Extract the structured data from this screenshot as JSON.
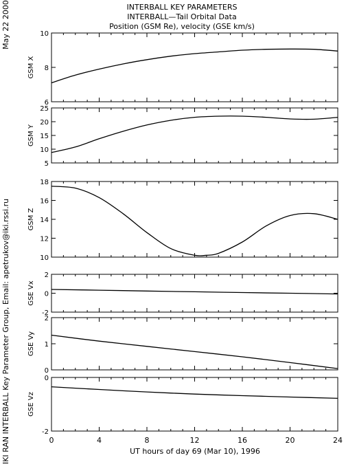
{
  "header": {
    "date": "May 22 2000",
    "title": "INTERBALL KEY PARAMETERS",
    "subtitle": "INTERBALL—Tail Orbital Data",
    "units": "Position (GSM Re), velocity (GSE km/s)"
  },
  "credit": "IKI RAN INTERBALL Key Parameter Group, Email: apetrukov@iki.rssi.ru",
  "chart_data": {
    "type": "line",
    "x_label": "UT hours of day  69 (Mar 10), 1996",
    "x_range": [
      0,
      24
    ],
    "x_ticks": [
      "0",
      "4",
      "8",
      "12",
      "16",
      "20",
      "24"
    ],
    "panels": [
      {
        "ylabel": "GSM X",
        "ylim": [
          6,
          10
        ],
        "y_ticks": [
          "6",
          "8",
          "10"
        ],
        "x": [
          0,
          2,
          4,
          6,
          8,
          10,
          12,
          14,
          16,
          18,
          20,
          22,
          24
        ],
        "values": [
          7.1,
          7.55,
          7.9,
          8.2,
          8.45,
          8.65,
          8.8,
          8.9,
          9.0,
          9.05,
          9.07,
          9.05,
          8.95
        ]
      },
      {
        "ylabel": "GSM Y",
        "ylim": [
          5,
          25
        ],
        "y_ticks": [
          "5",
          "10",
          "15",
          "20",
          "25"
        ],
        "x": [
          0,
          2,
          4,
          6,
          8,
          10,
          12,
          14,
          16,
          18,
          20,
          22,
          24
        ],
        "values": [
          8.8,
          10.8,
          13.8,
          16.5,
          18.8,
          20.5,
          21.6,
          22.0,
          22.0,
          21.6,
          21.0,
          20.9,
          21.6
        ]
      },
      {
        "ylabel": "GSM Z",
        "ylim": [
          10,
          18
        ],
        "y_ticks": [
          "10",
          "12",
          "14",
          "16",
          "18"
        ],
        "x": [
          0,
          2,
          4,
          6,
          8,
          10,
          12,
          13,
          14,
          16,
          18,
          20,
          22,
          24
        ],
        "values": [
          17.5,
          17.3,
          16.3,
          14.6,
          12.6,
          10.9,
          10.2,
          10.2,
          10.4,
          11.6,
          13.3,
          14.4,
          14.6,
          14.0
        ]
      },
      {
        "ylabel": "GSE Vx",
        "ylim": [
          -2,
          2
        ],
        "y_ticks": [
          "-2",
          "0",
          "2"
        ],
        "x": [
          0,
          4,
          8,
          12,
          16,
          20,
          24
        ],
        "values": [
          0.4,
          0.32,
          0.23,
          0.15,
          0.07,
          0.0,
          -0.08
        ]
      },
      {
        "ylabel": "GSE Vy",
        "ylim": [
          0,
          2
        ],
        "y_ticks": [
          "0",
          "1",
          "2"
        ],
        "x": [
          0,
          4,
          8,
          12,
          16,
          20,
          24
        ],
        "values": [
          1.33,
          1.1,
          0.9,
          0.7,
          0.5,
          0.28,
          0.05
        ]
      },
      {
        "ylabel": "GSE Vz",
        "ylim": [
          -2,
          0
        ],
        "y_ticks": [
          "-2",
          "0"
        ],
        "x": [
          0,
          4,
          8,
          12,
          16,
          20,
          24
        ],
        "values": [
          -0.35,
          -0.45,
          -0.54,
          -0.62,
          -0.68,
          -0.73,
          -0.78
        ]
      }
    ]
  }
}
